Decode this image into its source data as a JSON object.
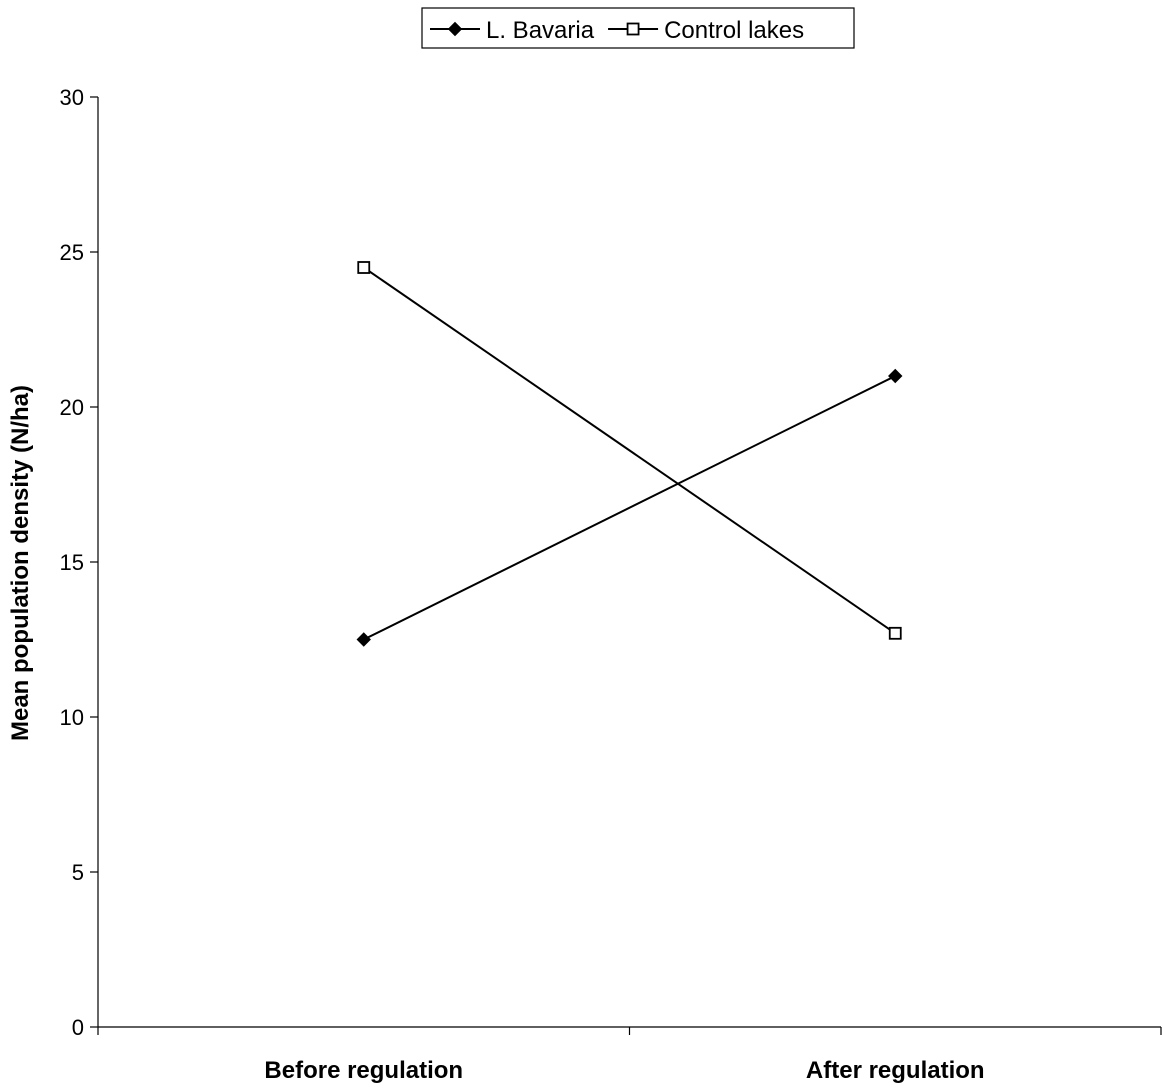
{
  "chart_data": {
    "type": "line",
    "title": "",
    "xlabel": "",
    "ylabel": "Mean population density (N/ha)",
    "categories": [
      "Before regulation",
      "After regulation"
    ],
    "series": [
      {
        "name": "L. Bavaria",
        "values": [
          12.5,
          21.0
        ],
        "marker": "filled-diamond",
        "color": "#000000"
      },
      {
        "name": "Control lakes",
        "values": [
          24.5,
          12.7
        ],
        "marker": "open-square",
        "color": "#000000"
      }
    ],
    "ylim": [
      0,
      30
    ],
    "yticks": [
      0,
      5,
      10,
      15,
      20,
      25,
      30
    ],
    "grid": false,
    "legend_position": "top-center"
  }
}
